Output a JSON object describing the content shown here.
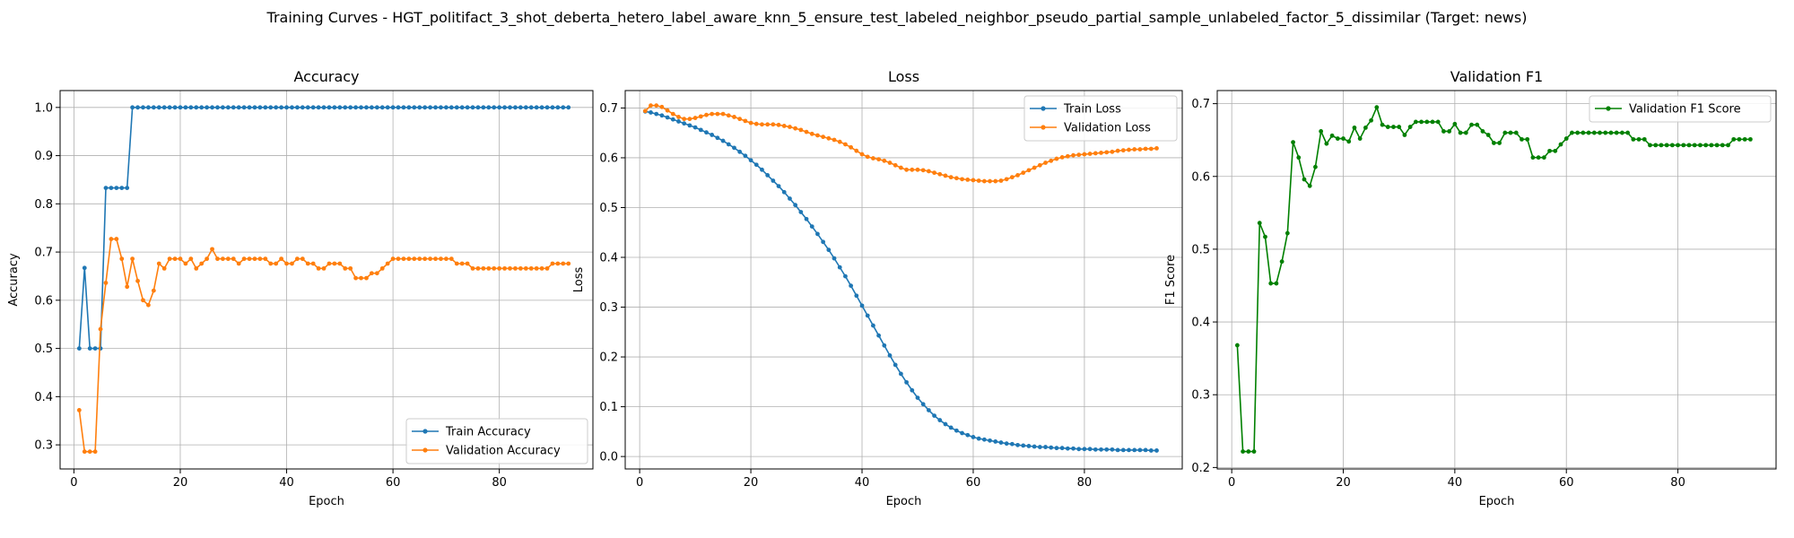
{
  "figure": {
    "suptitle": "Training Curves - HGT_politifact_3_shot_deberta_hetero_label_aware_knn_5_ensure_test_labeled_neighbor_pseudo_partial_sample_unlabeled_factor_5_dissimilar (Target: news)"
  },
  "chart_data": [
    {
      "type": "line",
      "title": "Accuracy",
      "xlabel": "Epoch",
      "ylabel": "Accuracy",
      "xlim": [
        -2.6,
        97.6
      ],
      "ylim": [
        0.25,
        1.035
      ],
      "xticks": [
        0,
        20,
        40,
        60,
        80
      ],
      "yticks": [
        0.3,
        0.4,
        0.5,
        0.6,
        0.7,
        0.8,
        0.9,
        1.0
      ],
      "ytick_labels": [
        "0.3",
        "0.4",
        "0.5",
        "0.6",
        "0.7",
        "0.8",
        "0.9",
        "1.0"
      ],
      "grid": true,
      "legend_position": "lower-right",
      "series": [
        {
          "name": "Train Accuracy",
          "color": "#1f77b4",
          "x_start": 1,
          "values": [
            0.5,
            0.667,
            0.5,
            0.5,
            0.5,
            0.833,
            0.833,
            0.833,
            0.833,
            0.833,
            1.0,
            1.0,
            1.0,
            1.0,
            1.0,
            1.0,
            1.0,
            1.0,
            1.0,
            1.0,
            1.0,
            1.0,
            1.0,
            1.0,
            1.0,
            1.0,
            1.0,
            1.0,
            1.0,
            1.0,
            1.0,
            1.0,
            1.0,
            1.0,
            1.0,
            1.0,
            1.0,
            1.0,
            1.0,
            1.0,
            1.0,
            1.0,
            1.0,
            1.0,
            1.0,
            1.0,
            1.0,
            1.0,
            1.0,
            1.0,
            1.0,
            1.0,
            1.0,
            1.0,
            1.0,
            1.0,
            1.0,
            1.0,
            1.0,
            1.0,
            1.0,
            1.0,
            1.0,
            1.0,
            1.0,
            1.0,
            1.0,
            1.0,
            1.0,
            1.0,
            1.0,
            1.0,
            1.0,
            1.0,
            1.0,
            1.0,
            1.0,
            1.0,
            1.0,
            1.0,
            1.0,
            1.0,
            1.0,
            1.0,
            1.0,
            1.0,
            1.0,
            1.0,
            1.0,
            1.0,
            1.0,
            1.0,
            1.0
          ]
        },
        {
          "name": "Validation Accuracy",
          "color": "#ff7f0e",
          "x_start": 1,
          "values": [
            0.372,
            0.286,
            0.286,
            0.286,
            0.54,
            0.636,
            0.727,
            0.727,
            0.686,
            0.628,
            0.686,
            0.64,
            0.6,
            0.59,
            0.62,
            0.676,
            0.666,
            0.686,
            0.686,
            0.686,
            0.676,
            0.686,
            0.666,
            0.676,
            0.686,
            0.706,
            0.686,
            0.686,
            0.686,
            0.686,
            0.676,
            0.686,
            0.686,
            0.686,
            0.686,
            0.686,
            0.676,
            0.676,
            0.686,
            0.676,
            0.676,
            0.686,
            0.686,
            0.676,
            0.676,
            0.666,
            0.666,
            0.676,
            0.676,
            0.676,
            0.666,
            0.666,
            0.646,
            0.646,
            0.646,
            0.656,
            0.656,
            0.666,
            0.676,
            0.686,
            0.686,
            0.686,
            0.686,
            0.686,
            0.686,
            0.686,
            0.686,
            0.686,
            0.686,
            0.686,
            0.686,
            0.676,
            0.676,
            0.676,
            0.666,
            0.666,
            0.666,
            0.666,
            0.666,
            0.666,
            0.666,
            0.666,
            0.666,
            0.666,
            0.666,
            0.666,
            0.666,
            0.666,
            0.666,
            0.676,
            0.676,
            0.676,
            0.676
          ]
        }
      ]
    },
    {
      "type": "line",
      "title": "Loss",
      "xlabel": "Epoch",
      "ylabel": "Loss",
      "xlim": [
        -2.6,
        97.6
      ],
      "ylim": [
        -0.025,
        0.735
      ],
      "xticks": [
        0,
        20,
        40,
        60,
        80
      ],
      "yticks": [
        0.0,
        0.1,
        0.2,
        0.3,
        0.4,
        0.5,
        0.6,
        0.7
      ],
      "ytick_labels": [
        "0.0",
        "0.1",
        "0.2",
        "0.3",
        "0.4",
        "0.5",
        "0.6",
        "0.7"
      ],
      "grid": true,
      "legend_position": "upper-right",
      "series": [
        {
          "name": "Train Loss",
          "color": "#1f77b4",
          "x_start": 1,
          "values": [
            0.693,
            0.691,
            0.688,
            0.685,
            0.681,
            0.677,
            0.673,
            0.669,
            0.665,
            0.661,
            0.656,
            0.651,
            0.646,
            0.64,
            0.634,
            0.627,
            0.62,
            0.612,
            0.604,
            0.595,
            0.586,
            0.576,
            0.565,
            0.554,
            0.543,
            0.531,
            0.518,
            0.505,
            0.491,
            0.477,
            0.462,
            0.447,
            0.431,
            0.415,
            0.398,
            0.38,
            0.362,
            0.343,
            0.323,
            0.303,
            0.283,
            0.263,
            0.243,
            0.223,
            0.203,
            0.184,
            0.166,
            0.149,
            0.133,
            0.118,
            0.105,
            0.093,
            0.082,
            0.073,
            0.065,
            0.058,
            0.052,
            0.047,
            0.043,
            0.039,
            0.036,
            0.034,
            0.032,
            0.03,
            0.028,
            0.026,
            0.025,
            0.023,
            0.022,
            0.021,
            0.02,
            0.019,
            0.019,
            0.018,
            0.017,
            0.017,
            0.016,
            0.016,
            0.015,
            0.015,
            0.015,
            0.014,
            0.014,
            0.014,
            0.014,
            0.013,
            0.013,
            0.013,
            0.013,
            0.013,
            0.013,
            0.012,
            0.012
          ]
        },
        {
          "name": "Validation Loss",
          "color": "#ff7f0e",
          "x_start": 1,
          "values": [
            0.694,
            0.705,
            0.705,
            0.702,
            0.695,
            0.688,
            0.682,
            0.678,
            0.678,
            0.68,
            0.683,
            0.686,
            0.688,
            0.688,
            0.688,
            0.685,
            0.682,
            0.678,
            0.674,
            0.67,
            0.668,
            0.667,
            0.667,
            0.667,
            0.666,
            0.664,
            0.662,
            0.659,
            0.656,
            0.652,
            0.648,
            0.645,
            0.642,
            0.639,
            0.636,
            0.632,
            0.627,
            0.621,
            0.614,
            0.607,
            0.602,
            0.599,
            0.597,
            0.594,
            0.59,
            0.585,
            0.58,
            0.576,
            0.576,
            0.576,
            0.575,
            0.573,
            0.57,
            0.567,
            0.564,
            0.561,
            0.559,
            0.557,
            0.556,
            0.555,
            0.554,
            0.553,
            0.553,
            0.553,
            0.554,
            0.557,
            0.561,
            0.565,
            0.57,
            0.575,
            0.58,
            0.585,
            0.59,
            0.594,
            0.598,
            0.601,
            0.603,
            0.605,
            0.606,
            0.607,
            0.608,
            0.609,
            0.61,
            0.611,
            0.612,
            0.614,
            0.615,
            0.616,
            0.617,
            0.617,
            0.618,
            0.618,
            0.619
          ]
        }
      ]
    },
    {
      "type": "line",
      "title": "Validation F1",
      "xlabel": "Epoch",
      "ylabel": "F1 Score",
      "xlim": [
        -2.6,
        97.6
      ],
      "ylim": [
        0.198,
        0.718
      ],
      "xticks": [
        0,
        20,
        40,
        60,
        80
      ],
      "yticks": [
        0.2,
        0.3,
        0.4,
        0.5,
        0.6,
        0.7
      ],
      "ytick_labels": [
        "0.2",
        "0.3",
        "0.4",
        "0.5",
        "0.6",
        "0.7"
      ],
      "grid": true,
      "legend_position": "upper-right",
      "series": [
        {
          "name": "Validation F1 Score",
          "color": "#008000",
          "x_start": 1,
          "values": [
            0.368,
            0.222,
            0.222,
            0.222,
            0.536,
            0.517,
            0.453,
            0.453,
            0.483,
            0.522,
            0.647,
            0.626,
            0.596,
            0.587,
            0.613,
            0.662,
            0.645,
            0.656,
            0.652,
            0.652,
            0.648,
            0.667,
            0.652,
            0.667,
            0.677,
            0.695,
            0.671,
            0.668,
            0.668,
            0.668,
            0.657,
            0.668,
            0.675,
            0.675,
            0.675,
            0.675,
            0.675,
            0.662,
            0.662,
            0.672,
            0.66,
            0.66,
            0.671,
            0.671,
            0.662,
            0.657,
            0.646,
            0.646,
            0.66,
            0.66,
            0.66,
            0.651,
            0.651,
            0.626,
            0.626,
            0.626,
            0.635,
            0.635,
            0.644,
            0.652,
            0.66,
            0.66,
            0.66,
            0.66,
            0.66,
            0.66,
            0.66,
            0.66,
            0.66,
            0.66,
            0.66,
            0.651,
            0.651,
            0.651,
            0.643,
            0.643,
            0.643,
            0.643,
            0.643,
            0.643,
            0.643,
            0.643,
            0.643,
            0.643,
            0.643,
            0.643,
            0.643,
            0.643,
            0.643,
            0.651,
            0.651,
            0.651,
            0.651
          ]
        }
      ]
    }
  ]
}
